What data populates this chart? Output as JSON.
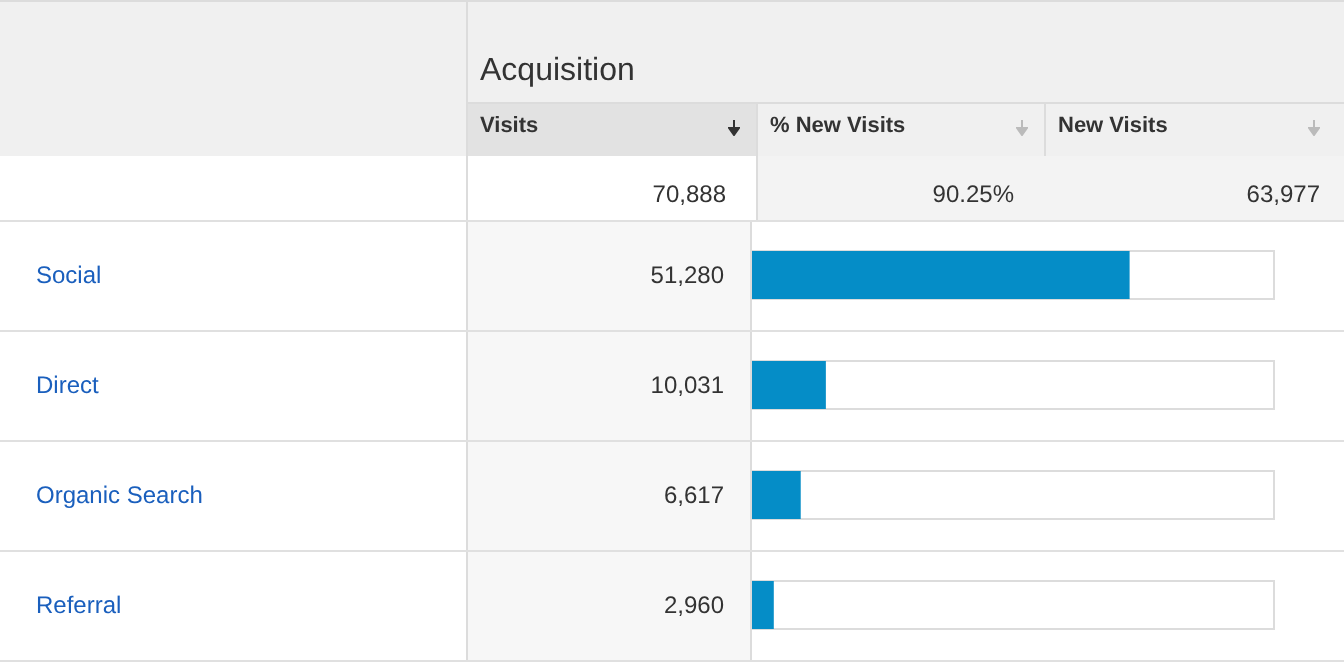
{
  "chart_data": {
    "type": "bar",
    "orientation": "horizontal",
    "title": "Acquisition",
    "annotations": [
      "Visits",
      "% New Visits",
      "New Visits",
      "70,888",
      "90.25%",
      "63,977"
    ],
    "categories": [
      "Social",
      "Direct",
      "Organic Search",
      "Referral"
    ],
    "values": [
      51280,
      10031,
      6617,
      2960
    ],
    "value_labels": [
      "51,280",
      "10,031",
      "6,617",
      "2,960"
    ],
    "color": "#058dc7"
  }
}
